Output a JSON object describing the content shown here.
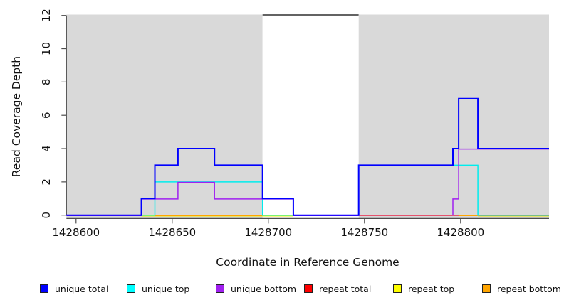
{
  "chart_data": {
    "type": "line",
    "subtype": "step-coverage",
    "title": "",
    "xlabel": "Coordinate in Reference Genome",
    "ylabel": "Read Coverage Depth",
    "xlim": [
      1428595,
      1428846
    ],
    "ylim": [
      0,
      12
    ],
    "x_ticks": [
      1428600,
      1428650,
      1428700,
      1428750,
      1428800
    ],
    "y_ticks": [
      0,
      2,
      4,
      6,
      8,
      10,
      12
    ],
    "grid": false,
    "legend_position": "bottom",
    "axis_color": "#4d4d4d",
    "background_regions": [
      {
        "name": "covered-region-left",
        "x0": 1428595,
        "x1": 1428697,
        "color": "#d9d9d9"
      },
      {
        "name": "gap-region",
        "x0": 1428697,
        "x1": 1428747,
        "color": "#ffffff",
        "top_line": true,
        "top_line_color": "#4d4d4d"
      },
      {
        "name": "covered-region-right",
        "x0": 1428747,
        "x1": 1428846,
        "color": "#d9d9d9"
      }
    ],
    "series": [
      {
        "name": "unique total",
        "color": "#0000ff",
        "segments": [
          [
            [
              1428595,
              0
            ],
            [
              1428634,
              0
            ],
            [
              1428634,
              1
            ],
            [
              1428641,
              1
            ],
            [
              1428641,
              3
            ],
            [
              1428653,
              3
            ],
            [
              1428653,
              4
            ],
            [
              1428672,
              4
            ],
            [
              1428672,
              3
            ],
            [
              1428697,
              3
            ],
            [
              1428697,
              1
            ],
            [
              1428713,
              1
            ],
            [
              1428713,
              0
            ],
            [
              1428747,
              0
            ],
            [
              1428747,
              3
            ],
            [
              1428796,
              3
            ],
            [
              1428796,
              4
            ],
            [
              1428799,
              4
            ],
            [
              1428799,
              7
            ],
            [
              1428809,
              7
            ],
            [
              1428809,
              4
            ],
            [
              1428846,
              4
            ]
          ]
        ]
      },
      {
        "name": "unique top",
        "color": "#00eded",
        "segments": [
          [
            [
              1428634,
              0
            ],
            [
              1428641,
              0
            ],
            [
              1428641,
              2
            ],
            [
              1428697,
              2
            ],
            [
              1428697,
              0
            ],
            [
              1428713,
              0
            ]
          ],
          [
            [
              1428747,
              0
            ],
            [
              1428747,
              3
            ],
            [
              1428809,
              3
            ],
            [
              1428809,
              0
            ],
            [
              1428846,
              0
            ]
          ]
        ]
      },
      {
        "name": "unique bottom",
        "color": "#a020f0",
        "segments": [
          [
            [
              1428595,
              0
            ],
            [
              1428634,
              0
            ],
            [
              1428634,
              1
            ],
            [
              1428653,
              1
            ],
            [
              1428653,
              2
            ],
            [
              1428672,
              2
            ],
            [
              1428672,
              1
            ],
            [
              1428713,
              1
            ],
            [
              1428713,
              0
            ],
            [
              1428747,
              0
            ]
          ],
          [
            [
              1428796,
              0
            ],
            [
              1428796,
              1
            ],
            [
              1428799,
              1
            ],
            [
              1428799,
              4
            ],
            [
              1428846,
              4
            ]
          ]
        ]
      },
      {
        "name": "repeat total",
        "color": "#e8274b",
        "segments": [
          [
            [
              1428747,
              0
            ],
            [
              1428846,
              0
            ]
          ]
        ]
      },
      {
        "name": "repeat top",
        "color": "#f5f500",
        "segments": [
          [
            [
              1428634,
              0
            ],
            [
              1428713,
              0
            ]
          ],
          [
            [
              1428809,
              0
            ],
            [
              1428846,
              0
            ]
          ]
        ]
      },
      {
        "name": "repeat bottom",
        "color": "#ffa500",
        "segments": [
          [
            [
              1428641,
              0
            ],
            [
              1428697,
              0
            ]
          ],
          [
            [
              1428799,
              0
            ],
            [
              1428809,
              0
            ]
          ]
        ]
      }
    ],
    "legend_swatch_colors": {
      "unique total": "#0000ff",
      "unique top": "#00ffff",
      "unique bottom": "#a020f0",
      "repeat total": "#ff0000",
      "repeat top": "#ffff00",
      "repeat bottom": "#ffa500"
    }
  }
}
